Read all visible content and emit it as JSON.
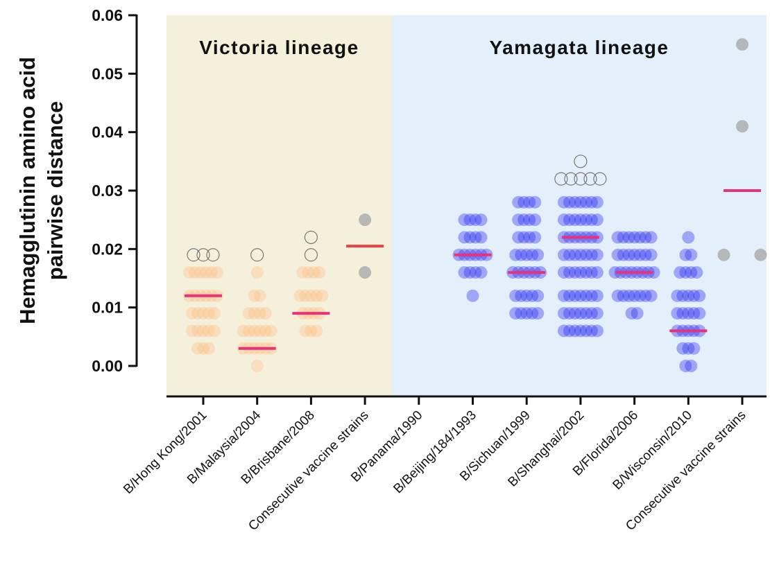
{
  "chart_data": {
    "type": "dotplot",
    "ylabel": [
      "Hemagglutinin amino acid",
      "pairwise distance"
    ],
    "ylim": [
      0,
      0.06
    ],
    "yticks": [
      {
        "value": 0,
        "label": "0.00"
      },
      0.01,
      0.02,
      0.03,
      0.04,
      0.05,
      0.06
    ],
    "regions": [
      {
        "label": "Victoria lineage",
        "color": "#f5f0dc",
        "from": 0,
        "to": 3
      },
      {
        "label": "Yamagata lineage",
        "color": "#e3effb",
        "from": 4,
        "to": 10
      }
    ],
    "categories": [
      "B/Hong Kong/2001",
      "B/Malaysia/2004",
      "B/Brisbane/2008",
      "Consecutive vaccine strains",
      "B/Panama/1990",
      "B/Beijing/184/1993",
      "B/Sichuan/1999",
      "B/Shanghai/2002",
      "B/Florida/2006",
      "B/Wisconsin/2010",
      "Consecutive vaccine strains"
    ],
    "groups": [
      {
        "color": "#ffbd80",
        "median_color": "#e8337a",
        "median": 0.012,
        "points": [
          0.003,
          0.003,
          0.003,
          0.006,
          0.006,
          0.006,
          0.006,
          0.006,
          0.009,
          0.009,
          0.009,
          0.009,
          0.009,
          0.012,
          0.012,
          0.012,
          0.012,
          0.012,
          0.012,
          0.016,
          0.016,
          0.016,
          0.016,
          0.016,
          0.016
        ],
        "open": [
          0.019,
          0.019,
          0.019
        ]
      },
      {
        "color": "#ffbd80",
        "median_color": "#e8337a",
        "median": 0.003,
        "points": [
          0,
          0.003,
          0.003,
          0.003,
          0.003,
          0.003,
          0.003,
          0.006,
          0.006,
          0.006,
          0.006,
          0.006,
          0.006,
          0.009,
          0.009,
          0.009,
          0.009,
          0.012,
          0.012,
          0.016
        ],
        "open": [
          0.019
        ]
      },
      {
        "color": "#ffbd80",
        "median_color": "#e8337a",
        "median": 0.009,
        "points": [
          0.006,
          0.006,
          0.006,
          0.009,
          0.009,
          0.009,
          0.009,
          0.012,
          0.012,
          0.012,
          0.012,
          0.012,
          0.016,
          0.016,
          0.016,
          0.016
        ],
        "open": [
          0.019,
          0.022
        ]
      },
      {
        "color": "#b0b0b0",
        "median_color": "#ef4040",
        "median": 0.0205,
        "points": [
          0.016,
          0.025
        ],
        "open": []
      },
      {
        "color": "#2020f0",
        "median_color": "#e8337a",
        "median": null,
        "points": [],
        "open": []
      },
      {
        "color": "#2020f0",
        "median_color": "#e8337a",
        "median": 0.019,
        "points": [
          0.012,
          0.016,
          0.016,
          0.016,
          0.016,
          0.019,
          0.019,
          0.019,
          0.019,
          0.019,
          0.019,
          0.022,
          0.022,
          0.022,
          0.022,
          0.025,
          0.025,
          0.025,
          0.025
        ],
        "open": []
      },
      {
        "color": "#2020f0",
        "median_color": "#e8337a",
        "median": 0.016,
        "points": [
          0.009,
          0.009,
          0.009,
          0.009,
          0.009,
          0.012,
          0.012,
          0.012,
          0.012,
          0.012,
          0.016,
          0.016,
          0.016,
          0.016,
          0.016,
          0.016,
          0.019,
          0.019,
          0.019,
          0.019,
          0.019,
          0.022,
          0.022,
          0.022,
          0.022,
          0.025,
          0.025,
          0.025,
          0.025,
          0.028,
          0.028,
          0.028,
          0.028
        ],
        "open": []
      },
      {
        "color": "#2020f0",
        "median_color": "#e8337a",
        "median": 0.022,
        "points": [
          0.006,
          0.006,
          0.006,
          0.006,
          0.006,
          0.006,
          0.006,
          0.009,
          0.009,
          0.009,
          0.009,
          0.009,
          0.009,
          0.009,
          0.012,
          0.012,
          0.012,
          0.012,
          0.012,
          0.012,
          0.012,
          0.016,
          0.016,
          0.016,
          0.016,
          0.016,
          0.016,
          0.016,
          0.019,
          0.019,
          0.019,
          0.019,
          0.019,
          0.019,
          0.019,
          0.022,
          0.022,
          0.022,
          0.022,
          0.022,
          0.022,
          0.022,
          0.025,
          0.025,
          0.025,
          0.025,
          0.025,
          0.025,
          0.025,
          0.028,
          0.028,
          0.028,
          0.028,
          0.028,
          0.028,
          0.028
        ],
        "open": [
          0.032,
          0.032,
          0.032,
          0.032,
          0.032,
          0.035
        ]
      },
      {
        "color": "#2020f0",
        "median_color": "#e8337a",
        "median": 0.016,
        "points": [
          0.009,
          0.009,
          0.012,
          0.012,
          0.012,
          0.012,
          0.012,
          0.012,
          0.012,
          0.016,
          0.016,
          0.016,
          0.016,
          0.016,
          0.016,
          0.016,
          0.016,
          0.019,
          0.019,
          0.019,
          0.019,
          0.019,
          0.019,
          0.019,
          0.022,
          0.022,
          0.022,
          0.022,
          0.022,
          0.022,
          0.022
        ],
        "open": []
      },
      {
        "color": "#2020f0",
        "median_color": "#e8337a",
        "median": 0.006,
        "points": [
          0,
          0,
          0.003,
          0.003,
          0.003,
          0.006,
          0.006,
          0.006,
          0.006,
          0.006,
          0.009,
          0.009,
          0.009,
          0.009,
          0.009,
          0.012,
          0.012,
          0.012,
          0.012,
          0.012,
          0.016,
          0.016,
          0.016,
          0.016,
          0.019,
          0.019,
          0.022
        ],
        "open": []
      },
      {
        "color": "#b0b0b0",
        "median_color": "#e8337a",
        "median": 0.03,
        "points": [
          0.019,
          0.019,
          0.041,
          0.055
        ],
        "open": []
      }
    ]
  }
}
